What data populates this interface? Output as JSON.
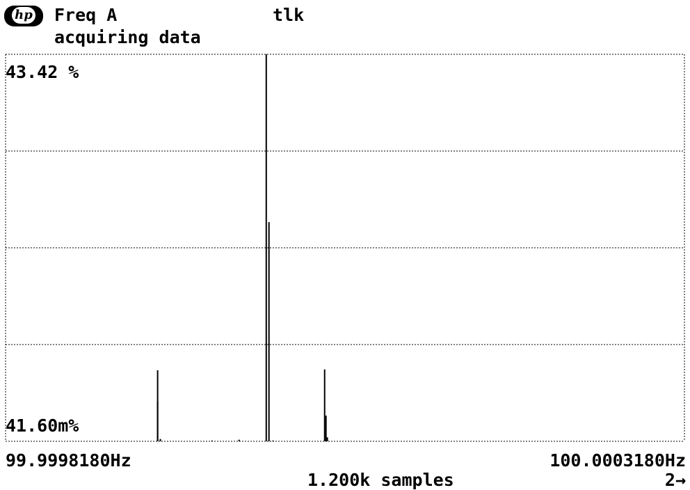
{
  "header": {
    "logo_text": "hp",
    "title": "Freq A",
    "status": "tlk",
    "message": "acquiring data"
  },
  "chart_data": {
    "type": "bar",
    "title": "Freq A",
    "ymax_label": "43.42 %",
    "ymin_label": "41.60m%",
    "xmin_label": "99.9998180Hz",
    "xmax_label": "100.0003180Hz",
    "samples_label": "1.200k samples",
    "page_label": "2→",
    "x_range": [
      99.999818,
      100.000318
    ],
    "y_range": [
      0.0416,
      43.42
    ],
    "y_unit": "%",
    "grid": true,
    "x": [
      99.99993,
      99.99993,
      99.999932,
      99.99997,
      99.99999,
      100.00001,
      100.000012,
      100.000015,
      100.000053,
      100.000054,
      100.000055
    ],
    "values": [
      7.97,
      4.47,
      0.26,
      0.09,
      0.18,
      43.42,
      24.59,
      0.09,
      8.06,
      2.88,
      0.44
    ]
  }
}
